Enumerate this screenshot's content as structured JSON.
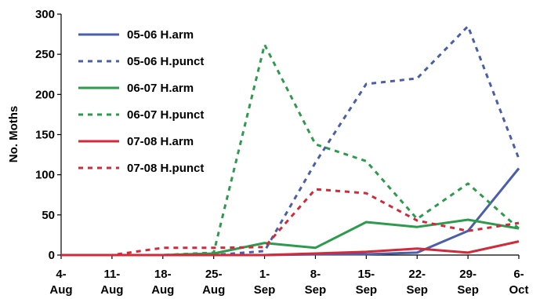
{
  "chart_data": {
    "type": "line",
    "title": "",
    "xlabel": "",
    "ylabel": "No. Moths",
    "ylim": [
      0,
      300
    ],
    "yticks": [
      0,
      50,
      100,
      150,
      200,
      250,
      300
    ],
    "grid": false,
    "legend_position": "top-left",
    "categories": [
      [
        "4-",
        "Aug"
      ],
      [
        "11-",
        "Aug"
      ],
      [
        "18-",
        "Aug"
      ],
      [
        "25-",
        "Aug"
      ],
      [
        "1-",
        "Sep"
      ],
      [
        "8-",
        "Sep"
      ],
      [
        "15-",
        "Sep"
      ],
      [
        "22-",
        "Sep"
      ],
      [
        "29-",
        "Sep"
      ],
      [
        "6-",
        "Oct"
      ]
    ],
    "series": [
      {
        "name": "05-06 H.arm",
        "color": "#4a5fa8",
        "dash": "solid",
        "values": [
          0,
          0,
          0,
          0,
          0,
          1,
          1,
          3,
          30,
          108
        ]
      },
      {
        "name": "05-06 H.punct",
        "color": "#4a5fa8",
        "dash": "dashed",
        "values": [
          0,
          0,
          0,
          0,
          5,
          115,
          213,
          220,
          285,
          120
        ]
      },
      {
        "name": "06-07 H.arm",
        "color": "#2e9a4e",
        "dash": "solid",
        "values": [
          0,
          0,
          0,
          2,
          15,
          9,
          41,
          35,
          44,
          33
        ]
      },
      {
        "name": "06-07 H.punct",
        "color": "#2e9a4e",
        "dash": "dashed",
        "values": [
          0,
          0,
          0,
          3,
          262,
          138,
          117,
          45,
          89,
          33
        ]
      },
      {
        "name": "07-08 H.arm",
        "color": "#d12a3a",
        "dash": "solid",
        "values": [
          0,
          0,
          0,
          0,
          0,
          2,
          4,
          8,
          3,
          17
        ]
      },
      {
        "name": "07-08 H.punct",
        "color": "#d12a3a",
        "dash": "dashed",
        "values": [
          0,
          0,
          9,
          9,
          10,
          82,
          77,
          43,
          30,
          40
        ]
      }
    ]
  }
}
